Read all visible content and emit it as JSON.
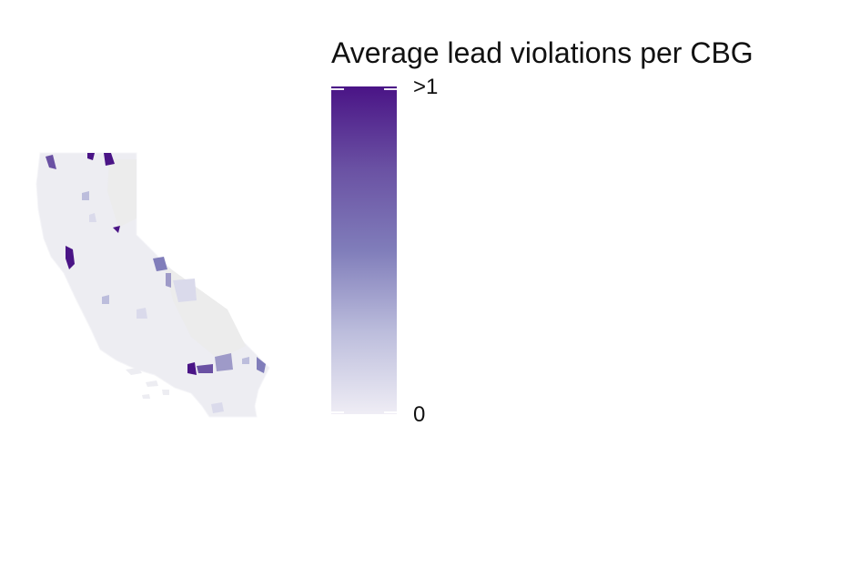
{
  "legend": {
    "title": "Average lead violations per CBG",
    "max_label": ">1",
    "min_label": "0",
    "scale_min": 0,
    "scale_max": 1,
    "colors": [
      "#efedf5",
      "#bcbddc",
      "#807dba",
      "#6a51a3",
      "#4a1486"
    ]
  },
  "map": {
    "region": "California",
    "base_fill": "#ededf2",
    "no_data_fill": "#ececec",
    "border_color": "#f5f5f8"
  }
}
